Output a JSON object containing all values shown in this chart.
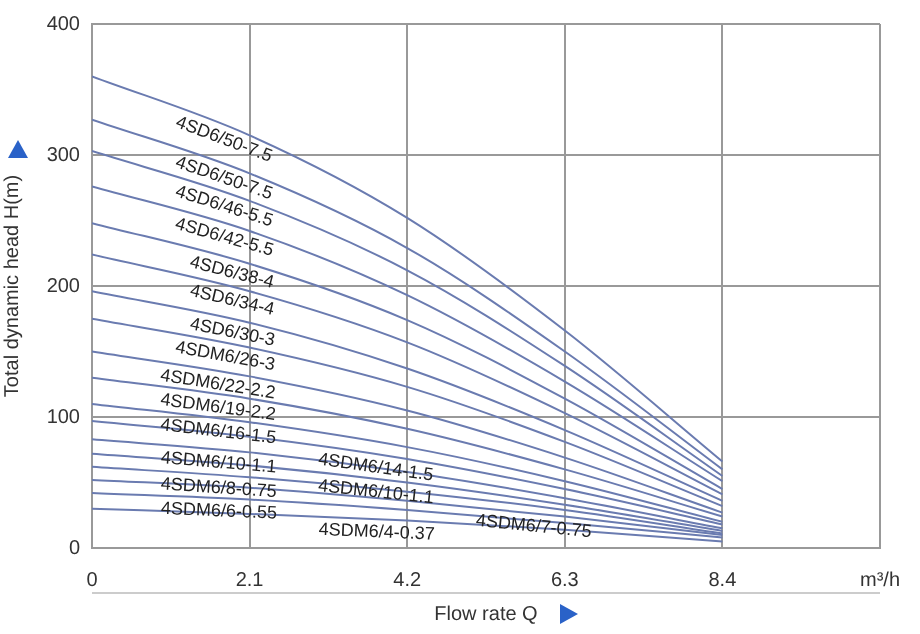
{
  "chart_data": {
    "type": "line",
    "xlabel": "Flow rate Q",
    "ylabel": "Total dynamic head H(m)",
    "x": [
      0,
      2.1,
      4.2,
      6.3,
      8.4
    ],
    "xlim": [
      0,
      10.5
    ],
    "xticks": [
      0,
      2.1,
      4.2,
      6.3,
      8.4,
      {
        "value": 10.5,
        "label": "m³/h"
      }
    ],
    "ylim": [
      0,
      400
    ],
    "yticks": [
      0,
      100,
      200,
      300,
      400
    ],
    "grid": true,
    "legend": false,
    "marker": "none",
    "line_style": "solid",
    "series": [
      {
        "name": "4SD6/50-7.5",
        "color": "#6a7bb0",
        "values": [
          360,
          315,
          252,
          166,
          66
        ]
      },
      {
        "name": "4SD6/50-7.5",
        "color": "#6a7bb0",
        "values": [
          327,
          286,
          229,
          150,
          60
        ]
      },
      {
        "name": "4SD6/46-5.5",
        "color": "#6a7bb0",
        "values": [
          303,
          265,
          212,
          139,
          55
        ]
      },
      {
        "name": "4SD6/42-5.5",
        "color": "#6a7bb0",
        "values": [
          276,
          242,
          193,
          127,
          51
        ]
      },
      {
        "name": "4SD6/38-4",
        "color": "#6a7bb0",
        "values": [
          248,
          217,
          174,
          114,
          45
        ]
      },
      {
        "name": "4SD6/34-4",
        "color": "#6a7bb0",
        "values": [
          224,
          196,
          157,
          103,
          41
        ]
      },
      {
        "name": "4SD6/30-3",
        "color": "#6a7bb0",
        "values": [
          196,
          172,
          137,
          90,
          36
        ]
      },
      {
        "name": "4SDM6/26-3",
        "color": "#6a7bb0",
        "values": [
          175,
          153,
          123,
          81,
          32
        ]
      },
      {
        "name": "4SDM6/22-2.2",
        "color": "#6a7bb0",
        "values": [
          150,
          131,
          105,
          69,
          27
        ]
      },
      {
        "name": "4SDM6/19-2.2",
        "color": "#6a7bb0",
        "values": [
          130,
          114,
          91,
          60,
          24
        ]
      },
      {
        "name": "4SDM6/16-1.5",
        "color": "#6a7bb0",
        "values": [
          110,
          96,
          77,
          51,
          20
        ]
      },
      {
        "name": "4SDM6/14-1.5",
        "color": "#6a7bb0",
        "values": [
          97,
          85,
          68,
          45,
          18
        ]
      },
      {
        "name": "4SDM6/10-1.1",
        "color": "#6a7bb0",
        "values": [
          83,
          73,
          58,
          38,
          15
        ]
      },
      {
        "name": "4SDM6/10-1.1",
        "color": "#6a7bb0",
        "values": [
          72,
          63,
          50,
          33,
          13
        ]
      },
      {
        "name": "4SDM6/8-0.75",
        "color": "#6a7bb0",
        "values": [
          62,
          54,
          43,
          29,
          11
        ]
      },
      {
        "name": "4SDM6/7-0.75",
        "color": "#6a7bb0",
        "values": [
          52,
          46,
          36,
          24,
          10
        ]
      },
      {
        "name": "4SDM6/6-0.55",
        "color": "#6a7bb0",
        "values": [
          42,
          37,
          29,
          19,
          8
        ]
      },
      {
        "name": "4SDM6/4-0.37",
        "color": "#6a7bb0",
        "values": [
          30,
          26,
          21,
          14,
          5
        ]
      }
    ]
  }
}
